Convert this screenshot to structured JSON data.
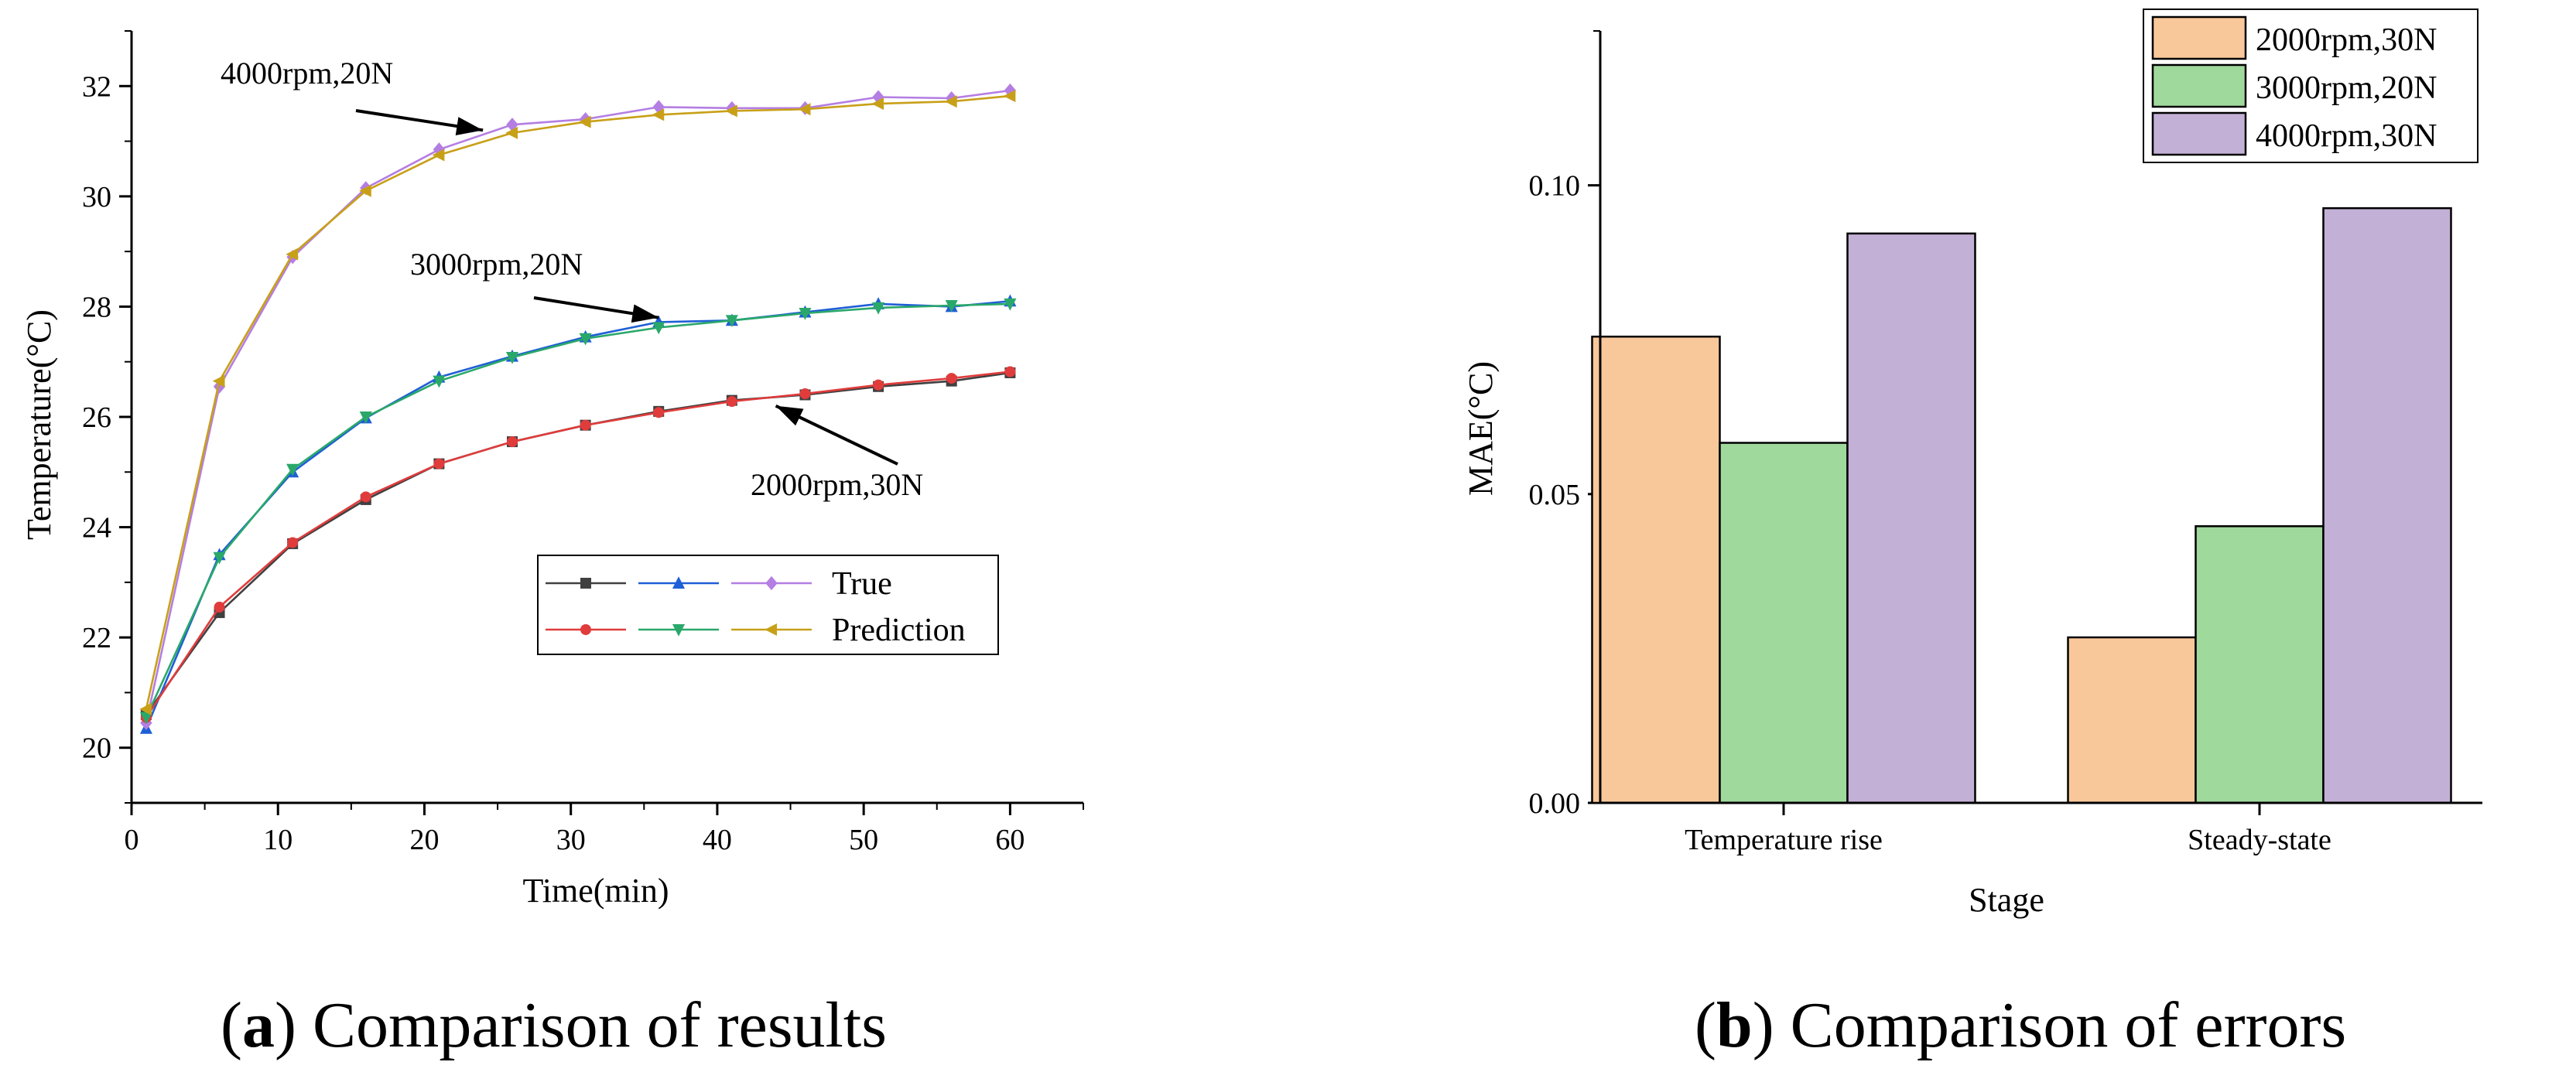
{
  "chart_data": [
    {
      "type": "line",
      "panel": "a",
      "xlabel": "Time(min)",
      "ylabel": "Temperature(°C)",
      "xlim": [
        0,
        65
      ],
      "ylim": [
        19,
        33
      ],
      "xticks": [
        0,
        10,
        20,
        30,
        40,
        50,
        60
      ],
      "yticks": [
        20,
        22,
        24,
        26,
        28,
        30,
        32
      ],
      "x": [
        1,
        6,
        11,
        16,
        21,
        26,
        31,
        36,
        41,
        46,
        51,
        56,
        60
      ],
      "series": [
        {
          "name": "True",
          "color": "#404040",
          "marker": "square",
          "values": [
            20.6,
            22.45,
            23.7,
            24.5,
            25.15,
            25.55,
            25.85,
            26.1,
            26.3,
            26.4,
            26.55,
            26.65,
            26.8
          ]
        },
        {
          "name": "True",
          "color": "#1f5fd6",
          "marker": "triangle-up",
          "values": [
            20.35,
            23.5,
            25.0,
            25.98,
            26.72,
            27.1,
            27.45,
            27.72,
            27.75,
            27.9,
            28.05,
            28.0,
            28.1
          ]
        },
        {
          "name": "True",
          "color": "#b47ee3",
          "marker": "diamond",
          "values": [
            20.45,
            26.55,
            28.9,
            30.15,
            30.85,
            31.3,
            31.4,
            31.62,
            31.6,
            31.6,
            31.8,
            31.78,
            31.92
          ]
        },
        {
          "name": "Prediction",
          "color": "#e03c3c",
          "marker": "circle",
          "values": [
            20.55,
            22.55,
            23.72,
            24.55,
            25.15,
            25.55,
            25.85,
            26.08,
            26.28,
            26.42,
            26.58,
            26.7,
            26.82
          ]
        },
        {
          "name": "Prediction",
          "color": "#2aa86a",
          "marker": "triangle-down",
          "values": [
            20.55,
            23.45,
            25.05,
            26.0,
            26.65,
            27.08,
            27.42,
            27.62,
            27.75,
            27.88,
            27.98,
            28.02,
            28.05
          ]
        },
        {
          "name": "Prediction",
          "color": "#c8a018",
          "marker": "triangle-left",
          "values": [
            20.7,
            26.65,
            28.95,
            30.1,
            30.75,
            31.15,
            31.35,
            31.48,
            31.55,
            31.58,
            31.68,
            31.72,
            31.82
          ]
        }
      ],
      "legend": {
        "placement": "bottom-right",
        "entries": [
          "True",
          "Prediction"
        ]
      },
      "annotations": [
        {
          "text": "4000rpm,20N",
          "point_x": 24,
          "point_y": 31.2
        },
        {
          "text": "3000rpm,20N",
          "point_x": 36,
          "point_y": 27.8
        },
        {
          "text": "2000rpm,30N",
          "point_x": 44,
          "point_y": 26.2
        }
      ],
      "caption_letter": "a",
      "caption_text": ") Comparison of results"
    },
    {
      "type": "bar",
      "panel": "b",
      "xlabel": "Stage",
      "ylabel": "MAE(°C)",
      "ylim": [
        0,
        0.125
      ],
      "yticks": [
        "0.00",
        "0.05",
        "0.10"
      ],
      "categories": [
        "Temperature rise",
        "Steady-state"
      ],
      "series": [
        {
          "name": "2000rpm,30N",
          "color": "#f9c89a",
          "values": [
            0.0755,
            0.0268
          ]
        },
        {
          "name": "3000rpm,20N",
          "color": "#a0d99c",
          "values": [
            0.0583,
            0.0448
          ]
        },
        {
          "name": "4000rpm,30N",
          "color": "#c3b0d6",
          "values": [
            0.0922,
            0.0963
          ]
        }
      ],
      "legend": {
        "placement": "top-right"
      },
      "caption_letter": "b",
      "caption_text": ") Comparison of errors"
    }
  ]
}
